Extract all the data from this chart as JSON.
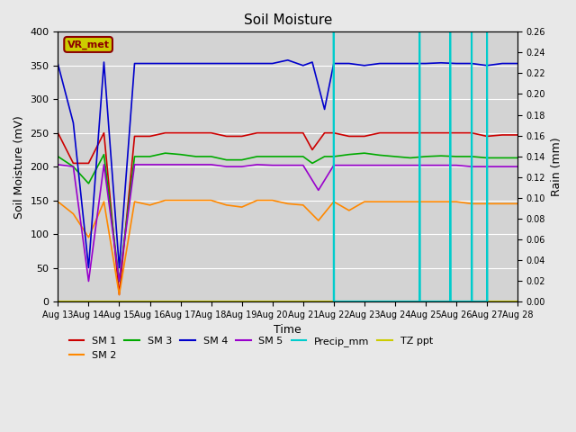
{
  "title": "Soil Moisture",
  "xlabel": "Time",
  "ylabel_left": "Soil Moisture (mV)",
  "ylabel_right": "Rain (mm)",
  "ylim_left": [
    0,
    400
  ],
  "ylim_right": [
    0,
    0.26
  ],
  "background_color": "#e8e8e8",
  "plot_bg_color": "#d3d3d3",
  "annotation_text": "VR_met",
  "annotation_bg": "#cccc00",
  "annotation_border": "darkred",
  "x_labels": [
    "Aug 13",
    "Aug 14",
    "Aug 15",
    "Aug 16",
    "Aug 17",
    "Aug 18",
    "Aug 19",
    "Aug 20",
    "Aug 21",
    "Aug 22",
    "Aug 23",
    "Aug 24",
    "Aug 25",
    "Aug 26",
    "Aug 27",
    "Aug 28"
  ],
  "series": {
    "SM1": {
      "color": "#cc0000",
      "label": "SM 1",
      "x": [
        0,
        0.5,
        1,
        1.5,
        2,
        2.5,
        3,
        3.5,
        4,
        4.5,
        5,
        5.5,
        6,
        6.5,
        7,
        7.5,
        8,
        8.3,
        8.7,
        9,
        9.5,
        10,
        10.5,
        11,
        11.5,
        12,
        12.5,
        13,
        13.5,
        14,
        14.5,
        15
      ],
      "y": [
        250,
        205,
        205,
        250,
        10,
        245,
        245,
        250,
        250,
        250,
        250,
        245,
        245,
        250,
        250,
        250,
        250,
        225,
        250,
        250,
        245,
        245,
        250,
        250,
        250,
        250,
        250,
        250,
        250,
        245,
        247,
        247
      ]
    },
    "SM2": {
      "color": "#ff8800",
      "label": "SM 2",
      "x": [
        0,
        0.5,
        1,
        1.5,
        2,
        2.5,
        3,
        3.5,
        4,
        4.5,
        5,
        5.5,
        6,
        6.5,
        7,
        7.5,
        8,
        8.5,
        9,
        9.5,
        10,
        10.5,
        11,
        11.5,
        12,
        12.5,
        13,
        13.5,
        14,
        14.5,
        15
      ],
      "y": [
        148,
        130,
        95,
        148,
        10,
        148,
        143,
        150,
        150,
        150,
        150,
        143,
        140,
        150,
        150,
        145,
        143,
        120,
        148,
        135,
        148,
        148,
        148,
        148,
        148,
        148,
        148,
        145,
        145,
        145,
        145
      ]
    },
    "SM3": {
      "color": "#00aa00",
      "label": "SM 3",
      "x": [
        0,
        0.5,
        1,
        1.5,
        2,
        2.5,
        3,
        3.5,
        4,
        4.5,
        5,
        5.5,
        6,
        6.5,
        7,
        7.5,
        8,
        8.3,
        8.7,
        9,
        9.5,
        10,
        10.5,
        11,
        11.5,
        12,
        12.5,
        13,
        13.5,
        14,
        14.5,
        15
      ],
      "y": [
        215,
        200,
        175,
        218,
        30,
        215,
        215,
        220,
        218,
        215,
        215,
        210,
        210,
        215,
        215,
        215,
        215,
        205,
        215,
        215,
        218,
        220,
        217,
        215,
        213,
        215,
        216,
        215,
        215,
        213,
        213,
        213
      ]
    },
    "SM4": {
      "color": "#0000cc",
      "label": "SM 4",
      "x": [
        0,
        0.5,
        1,
        1.5,
        2,
        2.5,
        3,
        3.5,
        4,
        4.5,
        5,
        5.5,
        6,
        6.5,
        7,
        7.5,
        8,
        8.3,
        8.7,
        9,
        9.5,
        10,
        10.5,
        11,
        11.5,
        12,
        12.5,
        13,
        13.5,
        14,
        14.5,
        15
      ],
      "y": [
        352,
        265,
        50,
        355,
        50,
        353,
        353,
        353,
        353,
        353,
        353,
        353,
        353,
        353,
        353,
        358,
        350,
        355,
        285,
        353,
        353,
        350,
        353,
        353,
        353,
        353,
        354,
        353,
        353,
        350,
        353,
        353
      ]
    },
    "SM5": {
      "color": "#9900cc",
      "label": "SM 5",
      "x": [
        0,
        0.5,
        1,
        1.5,
        2,
        2.5,
        3,
        3.5,
        4,
        4.5,
        5,
        5.5,
        6,
        6.5,
        7,
        7.5,
        8,
        8.5,
        9,
        9.5,
        10,
        10.5,
        11,
        11.5,
        12,
        12.5,
        13,
        13.5,
        14,
        14.5,
        15
      ],
      "y": [
        203,
        200,
        30,
        203,
        30,
        203,
        203,
        203,
        203,
        203,
        203,
        200,
        200,
        203,
        202,
        202,
        202,
        165,
        202,
        202,
        202,
        202,
        202,
        202,
        202,
        202,
        202,
        200,
        200,
        200,
        200
      ]
    },
    "Precip": {
      "color": "#00cccc",
      "label": "Precip_mm",
      "x": [
        9.0,
        9.0,
        9.01,
        11.8,
        11.8,
        11.81,
        12.8,
        12.8,
        12.81,
        13.5,
        13.5,
        13.51,
        14.0,
        14.0,
        14.01
      ],
      "y": [
        0,
        0.26,
        0,
        0,
        0.26,
        0,
        0,
        0.26,
        0,
        0,
        0.26,
        0,
        0,
        0.26,
        0
      ]
    },
    "TZ": {
      "color": "#cccc00",
      "label": "TZ ppt",
      "x": [
        0,
        15
      ],
      "y": [
        0,
        0
      ]
    }
  },
  "left_ticks": [
    0,
    50,
    100,
    150,
    200,
    250,
    300,
    350,
    400
  ],
  "right_ticks": [
    0.0,
    0.02,
    0.04,
    0.06,
    0.08,
    0.1,
    0.12,
    0.14,
    0.16,
    0.18,
    0.2,
    0.22,
    0.24,
    0.26
  ]
}
